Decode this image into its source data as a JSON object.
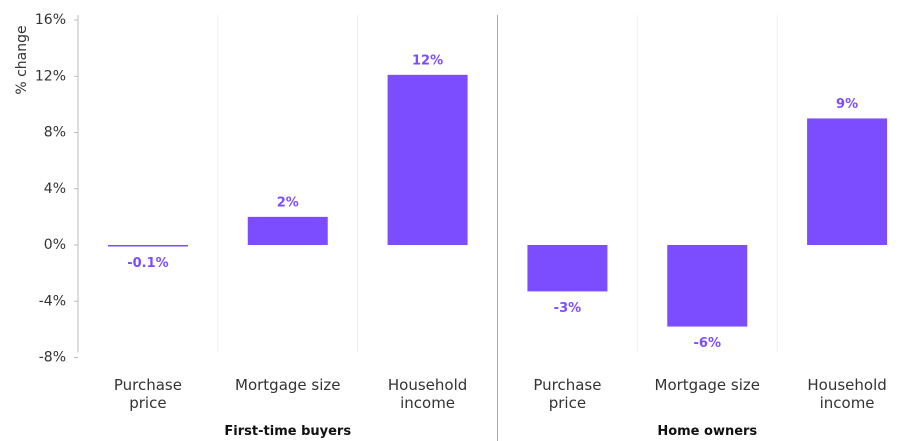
{
  "chart_data": {
    "type": "bar",
    "y_label": "% change",
    "color": "#7c4dff",
    "ylim": [
      -8,
      16
    ],
    "yticks": [
      {
        "value": -8,
        "label": "-8%"
      },
      {
        "value": -4,
        "label": "-4%"
      },
      {
        "value": 0,
        "label": "0%"
      },
      {
        "value": 4,
        "label": "4%"
      },
      {
        "value": 8,
        "label": "8%"
      },
      {
        "value": 12,
        "label": "12%"
      },
      {
        "value": 16,
        "label": "16%"
      }
    ],
    "groups": [
      {
        "name": "First-time buyers",
        "categories": [
          "Purchase price",
          "Mortgage size",
          "Household income"
        ],
        "values": [
          -0.1,
          2.0,
          12.1
        ],
        "value_labels": [
          "-0.1%",
          "2%",
          "12%"
        ]
      },
      {
        "name": "Home owners",
        "categories": [
          "Purchase price",
          "Mortgage size",
          "Household income"
        ],
        "values": [
          -3.3,
          -5.8,
          9.0
        ],
        "value_labels": [
          "-3%",
          "-6%",
          "9%"
        ]
      }
    ]
  }
}
